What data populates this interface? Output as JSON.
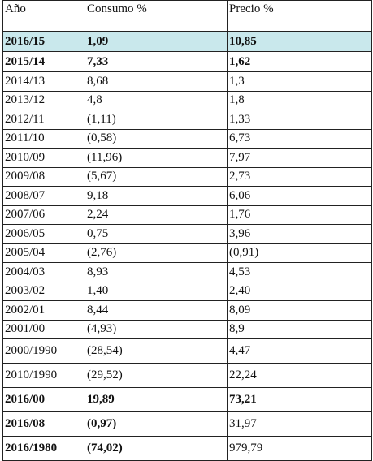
{
  "table": {
    "header": [
      "Año",
      "Consumo %",
      "Precio %"
    ],
    "rows": [
      [
        "2016/15",
        "1,09",
        "10,85"
      ],
      [
        "2015/14",
        "7,33",
        "1,62"
      ],
      [
        "2014/13",
        "8,68",
        "1,3"
      ],
      [
        "2013/12",
        "4,8",
        "1,8"
      ],
      [
        "2012/11",
        "(1,11)",
        "1,33"
      ],
      [
        "2011/10",
        "(0,58)",
        "6,73"
      ],
      [
        "2010/09",
        "(11,96)",
        "7,97"
      ],
      [
        "2009/08",
        "(5,67)",
        "2,73"
      ],
      [
        "2008/07",
        "9,18",
        "6,06"
      ],
      [
        "2007/06",
        "2,24",
        "1,76"
      ],
      [
        "2006/05",
        "0,75",
        "3,96"
      ],
      [
        "2005/04",
        "(2,76)",
        "(0,91)"
      ],
      [
        "2004/03",
        "8,93",
        "4,53"
      ],
      [
        "2003/02",
        "1,40",
        "2,40"
      ],
      [
        "2002/01",
        "8,44",
        "8,09"
      ],
      [
        "2001/00",
        "(4,93)",
        "8,9"
      ],
      [
        "2000/1990",
        "(28,54)",
        "4,47"
      ],
      [
        "2010/1990",
        "(29,52)",
        "22,24"
      ],
      [
        "2016/00",
        "19,89",
        "73,21"
      ],
      [
        "2016/08",
        "(0,97)",
        "31,97"
      ],
      [
        "2016/1980",
        "(74,02)",
        "979,79"
      ]
    ]
  }
}
